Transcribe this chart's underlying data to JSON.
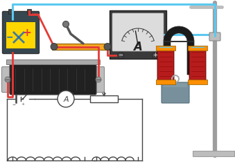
{
  "bg_color": "#ffffff",
  "wire_blue": "#5bc8f0",
  "wire_red": "#e53935",
  "battery_body": "#37474f",
  "battery_yellow": "#ffd600",
  "battery_minus_color": "#1565c0",
  "battery_plus_color": "#e53935",
  "rheostat_orange": "#f5a623",
  "rheostat_dark": "#5d4037",
  "ammeter_dark": "#424242",
  "ammeter_face": "#e8e8e8",
  "coil_red": "#b71c1c",
  "coil_orange": "#ff8f00",
  "magnet_black": "#1a1a1a",
  "stand_gray": "#9e9e9e",
  "stand_light": "#bdbdbd",
  "block_gray": "#78909c",
  "block_dark": "#546e7a",
  "cylinder_dark": "#212121",
  "cylinder_silver": "#bdbdbd",
  "schematic_color": "#444444",
  "schematic_lw": 1.0
}
